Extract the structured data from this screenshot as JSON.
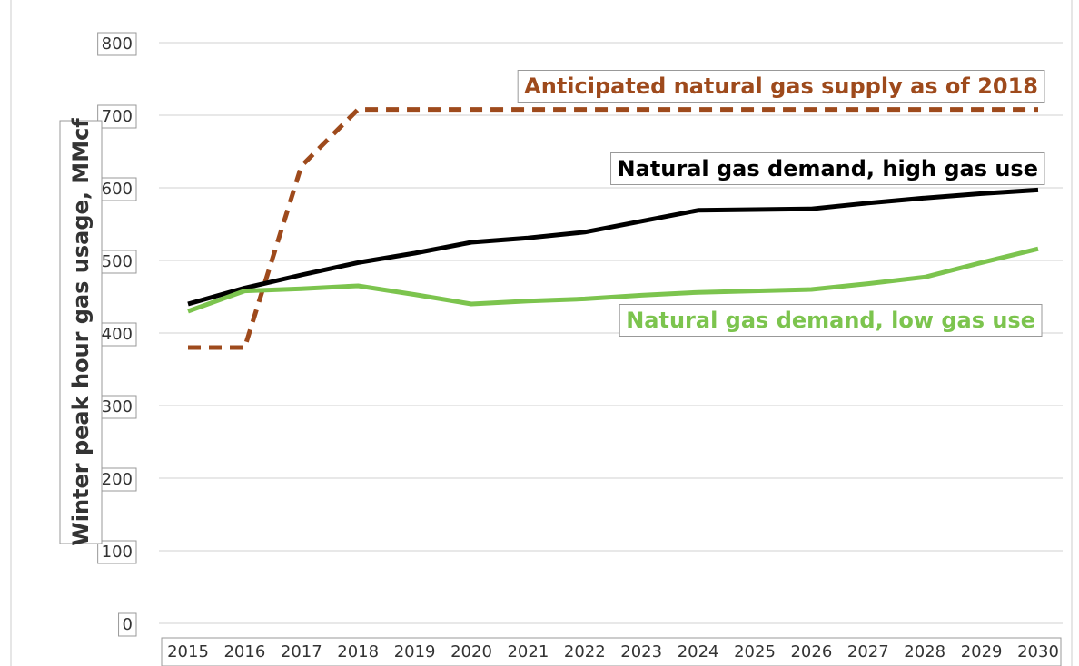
{
  "chart_data": {
    "type": "line",
    "y_label": "Winter peak hour gas usage, MMcf",
    "x": [
      2015,
      2016,
      2017,
      2018,
      2019,
      2020,
      2021,
      2022,
      2023,
      2024,
      2025,
      2026,
      2027,
      2028,
      2029,
      2030
    ],
    "xlim": [
      2015,
      2030
    ],
    "ylim": [
      0,
      800
    ],
    "yticks": [
      0,
      100,
      200,
      300,
      400,
      500,
      600,
      700,
      800
    ],
    "grid": true,
    "series": [
      {
        "name": "Anticipated natural gas supply as of 2018",
        "color": "#9e4a1c",
        "dashed": true,
        "values": [
          380,
          380,
          630,
          708,
          708,
          708,
          708,
          708,
          708,
          708,
          708,
          708,
          708,
          708,
          708,
          708
        ]
      },
      {
        "name": "Natural gas demand, high gas use",
        "color": "#000000",
        "dashed": false,
        "values": [
          440,
          462,
          480,
          497,
          510,
          525,
          531,
          539,
          554,
          569,
          570,
          571,
          579,
          586,
          592,
          597
        ]
      },
      {
        "name": "Natural gas demand, low gas use",
        "color": "#7cc44e",
        "dashed": false,
        "values": [
          430,
          458,
          461,
          465,
          453,
          440,
          444,
          447,
          452,
          456,
          458,
          460,
          468,
          477,
          497,
          516
        ]
      }
    ]
  }
}
